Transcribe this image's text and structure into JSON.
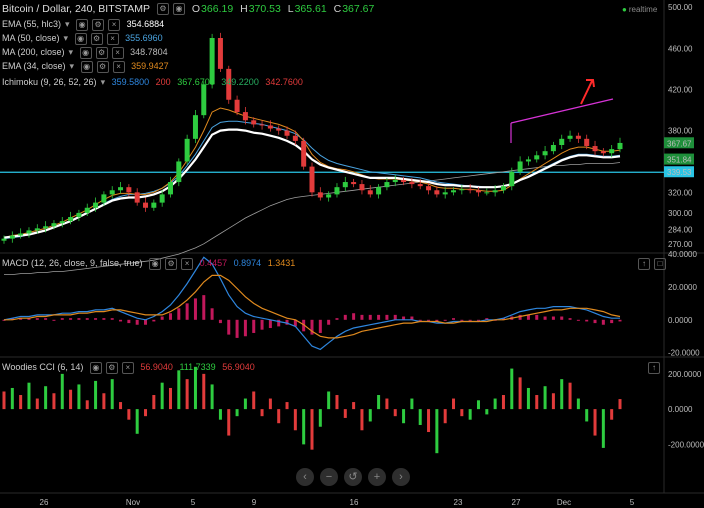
{
  "header": {
    "title": "Bitcoin / Dollar, 240, BITSTAMP",
    "o_label": "O",
    "o_value": "366.19",
    "h_label": "H",
    "h_value": "370.53",
    "l_label": "L",
    "l_value": "365.61",
    "c_label": "C",
    "c_value": "367.67",
    "realtime": "realtime"
  },
  "indicators": [
    {
      "label": "EMA (55, hlc3)",
      "value": "354.6884",
      "color": "#ffffff"
    },
    {
      "label": "MA (50, close)",
      "value": "355.6960",
      "color": "#4aa3df"
    },
    {
      "label": "MA (200, close)",
      "value": "348.7804",
      "color": "#bbbbbb"
    },
    {
      "label": "EMA (34, close)",
      "value": "359.9427",
      "color": "#e08a1e"
    }
  ],
  "ichimoku": {
    "label": "Ichimoku (9, 26, 52, 26)",
    "values": [
      {
        "text": "359.5800",
        "color": "#2e86de"
      },
      {
        "text": "200",
        "color": "#e23b3b"
      },
      {
        "text": "367.6700",
        "color": "#2ecc40"
      },
      {
        "text": "349.2200",
        "color": "#27ae60"
      },
      {
        "text": "342.7600",
        "color": "#e23b3b"
      }
    ]
  },
  "macd": {
    "label": "MACD (12, 26, close, 9, false, true)",
    "values": [
      {
        "text": "0.4457",
        "color": "#c2185b"
      },
      {
        "text": "0.8974",
        "color": "#2e86de"
      },
      {
        "text": "1.3431",
        "color": "#e08a1e"
      }
    ]
  },
  "cci": {
    "label": "Woodies CCI (6, 14)",
    "values": [
      {
        "text": "56.9040",
        "color": "#e23b3b"
      },
      {
        "text": "111.7339",
        "color": "#2ecc40"
      },
      {
        "text": "56.9040",
        "color": "#e23b3b"
      }
    ]
  },
  "price_labels": {
    "last_a": "367.67",
    "last_b": "351.84",
    "hline": "339.53"
  },
  "nav_buttons": [
    "‹",
    "−",
    "↺",
    "+",
    "›"
  ],
  "chart_data": [
    {
      "type": "line",
      "name_ref": "price",
      "y_ticks": [
        270,
        284,
        300,
        320,
        340,
        380,
        420,
        460,
        500
      ],
      "ylim": [
        262,
        505
      ],
      "x_ticks": [
        "26",
        "Nov",
        "5",
        "9",
        "16",
        "23",
        "27",
        "Dec",
        "5"
      ],
      "close": [
        275,
        278,
        280,
        283,
        285,
        287,
        290,
        292,
        296,
        300,
        305,
        310,
        318,
        322,
        325,
        320,
        310,
        305,
        310,
        318,
        330,
        350,
        372,
        395,
        425,
        470,
        440,
        410,
        398,
        390,
        386,
        385,
        382,
        380,
        375,
        370,
        345,
        320,
        315,
        318,
        325,
        330,
        328,
        322,
        318,
        325,
        330,
        332,
        330,
        328,
        326,
        322,
        318,
        320,
        322,
        323,
        322,
        320,
        320,
        322,
        326,
        340,
        350,
        352,
        356,
        360,
        366,
        372,
        375,
        372,
        365,
        360,
        358,
        362,
        368
      ],
      "ema55": [
        276,
        277,
        278,
        279,
        281,
        283,
        286,
        289,
        292,
        296,
        300,
        304,
        308,
        312,
        314,
        315,
        315,
        316,
        318,
        321,
        326,
        333,
        342,
        352,
        364,
        376,
        380,
        381,
        381,
        380,
        378,
        377,
        375,
        373,
        370,
        366,
        360,
        352,
        347,
        344,
        342,
        340,
        338,
        336,
        334,
        334,
        334,
        334,
        333,
        332,
        331,
        330,
        328,
        327,
        327,
        326,
        326,
        325,
        325,
        325,
        326,
        328,
        332,
        335,
        339,
        343,
        347,
        351,
        354,
        356,
        356,
        355,
        354,
        354,
        355
      ],
      "ma50": [
        275,
        276,
        277,
        279,
        281,
        283,
        286,
        289,
        292,
        296,
        300,
        304,
        309,
        313,
        316,
        318,
        318,
        319,
        321,
        324,
        329,
        336,
        346,
        357,
        370,
        383,
        388,
        389,
        389,
        388,
        387,
        386,
        384,
        382,
        380,
        377,
        371,
        363,
        356,
        351,
        348,
        346,
        344,
        342,
        340,
        339,
        338,
        337,
        336,
        335,
        334,
        332,
        330,
        329,
        328,
        327,
        326,
        326,
        325,
        325,
        326,
        328,
        332,
        336,
        340,
        344,
        348,
        352,
        355,
        357,
        357,
        356,
        355,
        355,
        356
      ],
      "ma200": [
        240,
        240,
        241,
        241,
        242,
        242,
        243,
        243,
        244,
        245,
        246,
        247,
        248,
        249,
        250,
        251,
        252,
        253,
        254,
        256,
        258,
        260,
        263,
        266,
        270,
        275,
        280,
        285,
        290,
        295,
        299,
        303,
        307,
        310,
        313,
        315,
        316,
        317,
        318,
        319,
        320,
        321,
        322,
        323,
        324,
        325,
        326,
        327,
        328,
        329,
        330,
        331,
        332,
        333,
        334,
        335,
        336,
        337,
        338,
        339,
        340,
        341,
        342,
        343,
        344,
        345,
        346,
        346,
        347,
        347,
        348,
        348,
        348,
        348,
        349
      ],
      "ema34": [
        276,
        278,
        279,
        281,
        283,
        285,
        288,
        291,
        295,
        299,
        303,
        308,
        313,
        317,
        319,
        319,
        318,
        318,
        320,
        324,
        330,
        339,
        351,
        364,
        380,
        398,
        402,
        400,
        397,
        394,
        392,
        390,
        388,
        386,
        383,
        379,
        370,
        357,
        349,
        345,
        343,
        342,
        340,
        337,
        334,
        333,
        333,
        333,
        332,
        331,
        330,
        328,
        325,
        324,
        324,
        323,
        323,
        322,
        321,
        321,
        322,
        327,
        333,
        338,
        343,
        348,
        353,
        358,
        362,
        364,
        364,
        362,
        360,
        360,
        361
      ],
      "hline": 339.53
    },
    {
      "type": "line",
      "name_ref": "macd",
      "y_ticks": [
        -20,
        0,
        20,
        40
      ],
      "ylim": [
        -22,
        40
      ],
      "macd": [
        0,
        1,
        2,
        2,
        3,
        3,
        3,
        4,
        4,
        5,
        5,
        6,
        6,
        7,
        5,
        3,
        1,
        0,
        2,
        5,
        9,
        15,
        22,
        30,
        38,
        34,
        25,
        15,
        8,
        4,
        2,
        1,
        0,
        -1,
        -2,
        -4,
        -10,
        -16,
        -18,
        -14,
        -10,
        -7,
        -5,
        -4,
        -3,
        -2,
        -1,
        0,
        0,
        0,
        -1,
        -1,
        -2,
        -2,
        -1,
        -1,
        -1,
        -1,
        0,
        0,
        1,
        3,
        5,
        6,
        7,
        7,
        8,
        8,
        8,
        7,
        6,
        4,
        2,
        1,
        1
      ],
      "signal": [
        0,
        0,
        1,
        1,
        2,
        2,
        3,
        3,
        3,
        4,
        4,
        5,
        5,
        6,
        6,
        5,
        4,
        3,
        3,
        3,
        5,
        8,
        12,
        17,
        23,
        27,
        27,
        24,
        19,
        14,
        10,
        7,
        5,
        3,
        1,
        0,
        -3,
        -7,
        -10,
        -11,
        -11,
        -10,
        -9,
        -7,
        -6,
        -5,
        -4,
        -3,
        -2,
        -2,
        -1,
        -1,
        -1,
        -2,
        -2,
        -1,
        -1,
        -1,
        -1,
        0,
        0,
        1,
        2,
        3,
        4,
        5,
        6,
        6,
        7,
        7,
        7,
        6,
        5,
        3,
        2
      ]
    },
    {
      "type": "bar",
      "name_ref": "cci",
      "y_ticks": [
        -200,
        0,
        200
      ],
      "ylim": [
        -300,
        290
      ],
      "values": [
        100,
        120,
        80,
        150,
        60,
        130,
        90,
        200,
        110,
        140,
        50,
        160,
        90,
        170,
        40,
        -60,
        -140,
        -40,
        80,
        150,
        120,
        220,
        170,
        240,
        200,
        140,
        -60,
        -150,
        -40,
        60,
        100,
        -40,
        60,
        -80,
        40,
        -120,
        -200,
        -230,
        -100,
        100,
        80,
        -50,
        40,
        -120,
        -70,
        80,
        60,
        -40,
        -80,
        60,
        -90,
        -130,
        -250,
        -80,
        60,
        -40,
        -60,
        50,
        -30,
        60,
        80,
        230,
        180,
        120,
        80,
        130,
        90,
        170,
        150,
        60,
        -70,
        -150,
        -220,
        -60,
        57
      ]
    }
  ]
}
